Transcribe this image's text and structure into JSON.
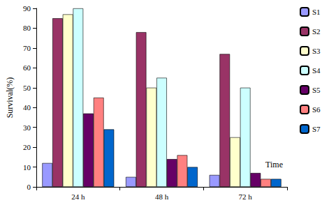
{
  "chart_data": {
    "type": "bar",
    "y_label": "Survival(%)",
    "x_label": "Time",
    "categories": [
      "24 h",
      "48 h",
      "72 h"
    ],
    "series": [
      {
        "name": "S1",
        "color": "#9999ff",
        "values": [
          12,
          5,
          6
        ]
      },
      {
        "name": "S2",
        "color": "#993366",
        "values": [
          85,
          78,
          67
        ]
      },
      {
        "name": "S3",
        "color": "#ffffcc",
        "values": [
          87,
          50,
          25
        ]
      },
      {
        "name": "S4",
        "color": "#ccffff",
        "values": [
          90,
          55,
          50
        ]
      },
      {
        "name": "S5",
        "color": "#660066",
        "values": [
          37,
          14,
          7
        ]
      },
      {
        "name": "S6",
        "color": "#ff8080",
        "values": [
          45,
          16,
          4
        ]
      },
      {
        "name": "S7",
        "color": "#0066cc",
        "values": [
          29,
          10,
          4
        ]
      }
    ],
    "ylim": [
      0,
      90
    ],
    "yticks": [
      0,
      10,
      20,
      30,
      40,
      50,
      60,
      70,
      80,
      90
    ],
    "grid": false,
    "legend": "right"
  }
}
